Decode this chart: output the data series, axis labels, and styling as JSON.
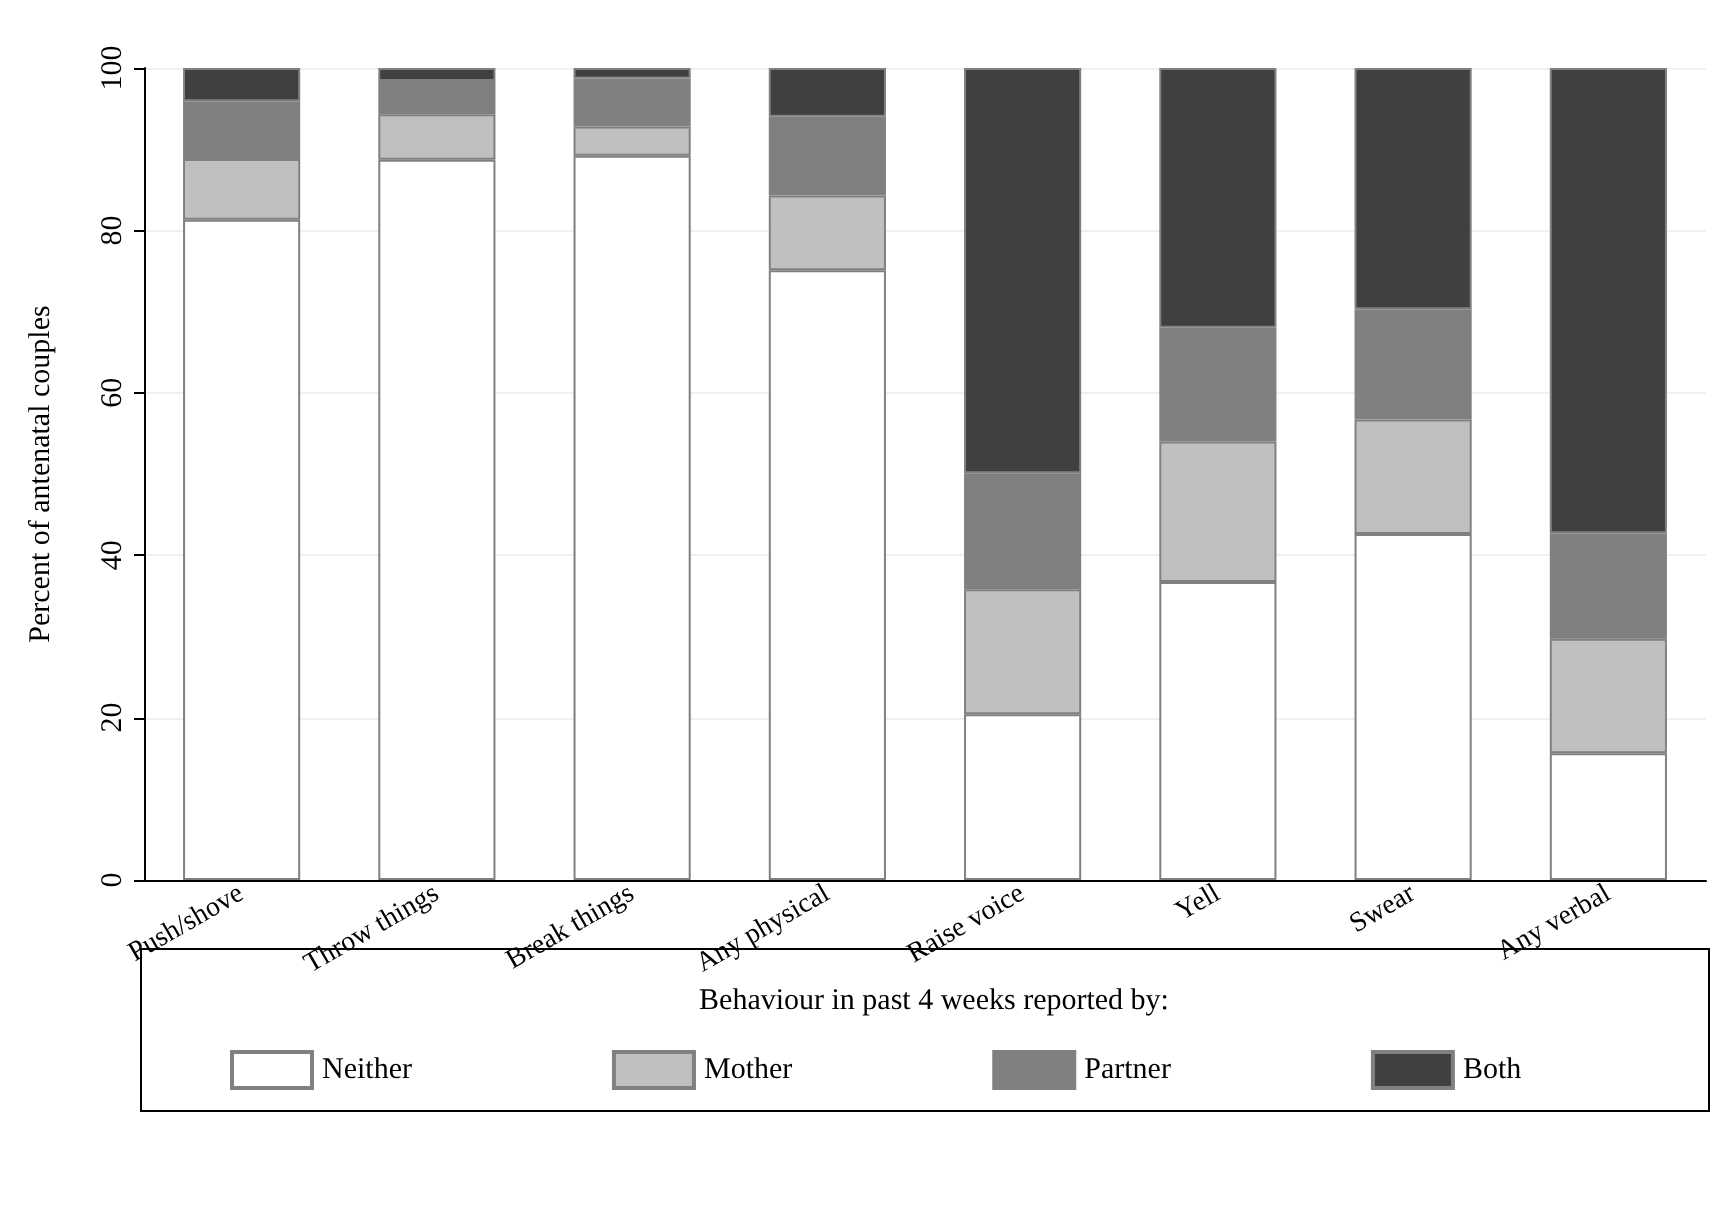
{
  "chart_data": {
    "type": "bar",
    "stacked": true,
    "ylabel": "Percent of antenatal couples",
    "legend_title": "Behaviour in past 4 weeks reported by:",
    "categories": [
      "Push/shove",
      "Throw things",
      "Break things",
      "Any physical",
      "Raise voice",
      "Yell",
      "Swear",
      "Any verbal"
    ],
    "series": [
      {
        "name": "Neither",
        "color": "#ffffff",
        "values": [
          81.3,
          88.7,
          89.2,
          75.1,
          20.4,
          36.7,
          42.6,
          15.6
        ]
      },
      {
        "name": "Mother",
        "color": "#c0c0c0",
        "values": [
          7.5,
          5.6,
          3.6,
          9.2,
          15.4,
          17.3,
          14.1,
          14.1
        ]
      },
      {
        "name": "Partner",
        "color": "#808080",
        "values": [
          7.1,
          4.1,
          5.9,
          9.7,
          14.3,
          14.0,
          13.6,
          13.0
        ]
      },
      {
        "name": "Both",
        "color": "#404040",
        "values": [
          4.1,
          1.6,
          1.3,
          6.0,
          49.9,
          32.0,
          29.7,
          57.3
        ]
      }
    ],
    "ylim": [
      0,
      100
    ],
    "yticks": [
      0,
      20,
      40,
      60,
      80,
      100
    ],
    "grid": "y",
    "legend": "bottom"
  }
}
